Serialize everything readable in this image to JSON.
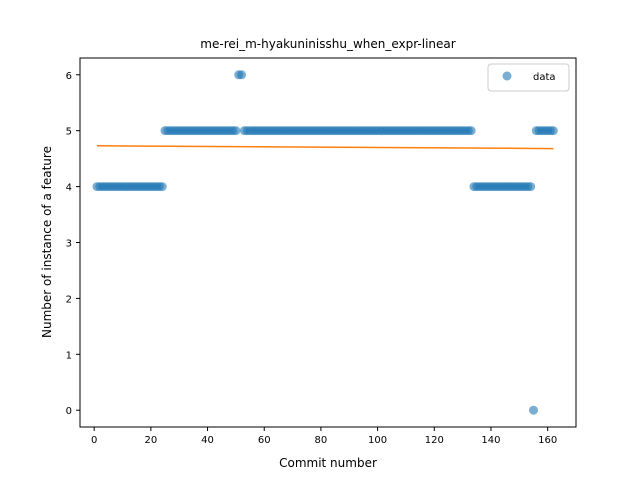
{
  "chart_data": {
    "type": "scatter",
    "title": "me-rei_m-hyakuninisshu_when_expr-linear",
    "xlabel": "Commit number",
    "ylabel": "Number of instance of a feature",
    "xlim": [
      -5,
      170
    ],
    "ylim": [
      -0.3,
      6.3
    ],
    "xticks": [
      0,
      20,
      40,
      60,
      80,
      100,
      120,
      140,
      160
    ],
    "yticks": [
      0,
      1,
      2,
      3,
      4,
      5,
      6
    ],
    "legend": {
      "position": "top-right",
      "entries": [
        "data"
      ]
    },
    "colors": {
      "points": "#1f77b4",
      "fit": "#ff7f0e"
    },
    "series": [
      {
        "name": "data",
        "kind": "points",
        "segments": [
          {
            "x_start": 1,
            "x_end": 24,
            "y": 4
          },
          {
            "x_start": 25,
            "x_end": 50,
            "y": 5
          },
          {
            "x_start": 51,
            "x_end": 52,
            "y": 6
          },
          {
            "x_start": 53,
            "x_end": 133,
            "y": 5
          },
          {
            "x_start": 134,
            "x_end": 154,
            "y": 4
          },
          {
            "x_start": 155,
            "x_end": 155,
            "y": 0
          },
          {
            "x_start": 156,
            "x_end": 162,
            "y": 5
          }
        ]
      },
      {
        "kind": "line",
        "x": [
          1,
          162
        ],
        "y": [
          4.73,
          4.68
        ]
      }
    ]
  }
}
